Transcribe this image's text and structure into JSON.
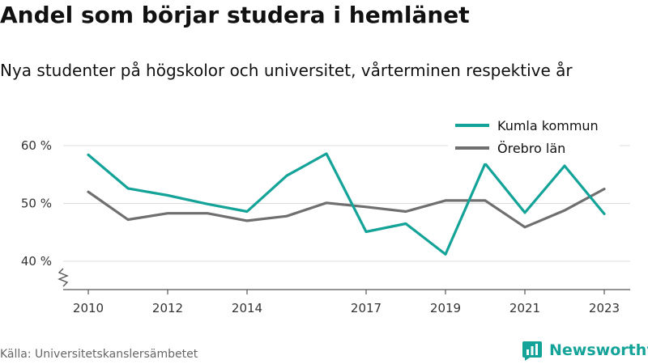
{
  "title": "Andel som börjar studera i hemlänet",
  "subtitle": "Nya studenter på högskolor och universitet, vårterminen respektive år",
  "source": "Källa: Universitetskanslersämbetet",
  "brand": {
    "name": "Newsworthy",
    "icon": "newsworthy-logo-icon",
    "color": "#14a398"
  },
  "chart_data": {
    "type": "line",
    "title": "Andel som börjar studera i hemlänet",
    "subtitle": "Nya studenter på högskolor och universitet, vårterminen respektive år",
    "x": [
      2010,
      2011,
      2012,
      2013,
      2014,
      2015,
      2016,
      2017,
      2018,
      2019,
      2020,
      2021,
      2022,
      2023
    ],
    "x_tick_labels": [
      "2010",
      "2012",
      "2014",
      "2017",
      "2019",
      "2021",
      "2023"
    ],
    "x_ticks": [
      2010,
      2012,
      2014,
      2017,
      2019,
      2021,
      2023
    ],
    "y_tick_labels": [
      "60 %",
      "50 %",
      "40 %"
    ],
    "y_ticks": [
      60,
      50,
      40
    ],
    "ylim": [
      35,
      62
    ],
    "y_axis_break": true,
    "grid": "horizontal",
    "legend_position": "top-right",
    "series": [
      {
        "name": "Kumla kommun",
        "color": "#14a398",
        "values": [
          58.4,
          52.6,
          51.4,
          49.9,
          48.6,
          54.8,
          58.6,
          45.1,
          46.5,
          41.2,
          56.9,
          48.4,
          56.5,
          48.2
        ]
      },
      {
        "name": "Örebro län",
        "color": "#6f6f6f",
        "values": [
          52.0,
          47.2,
          48.3,
          48.3,
          47.0,
          47.8,
          50.1,
          49.4,
          48.6,
          50.5,
          50.5,
          45.9,
          48.8,
          52.5
        ]
      }
    ]
  }
}
